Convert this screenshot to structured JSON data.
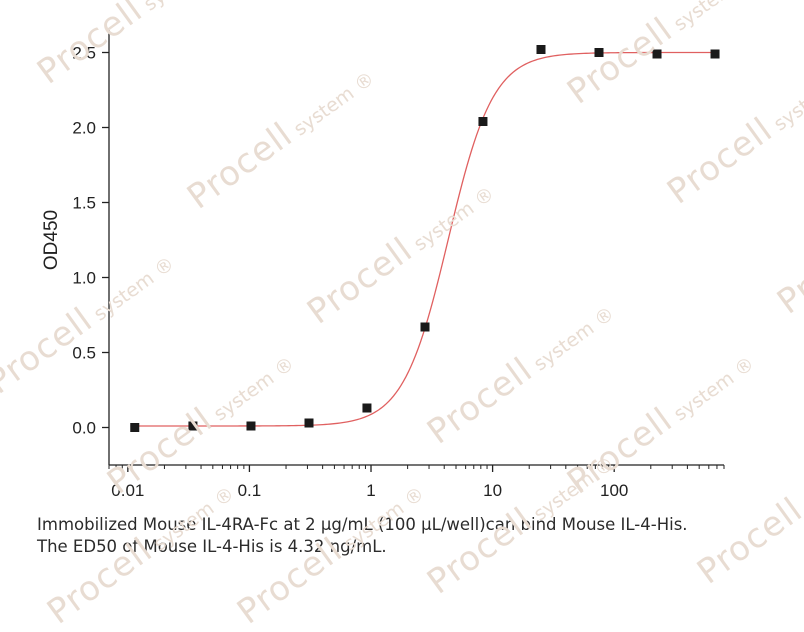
{
  "chart_data": {
    "type": "scatter",
    "title": "",
    "xlabel": "",
    "ylabel": "OD450",
    "x_scale": "log",
    "xlim": [
      0.007,
      800
    ],
    "ylim": [
      -0.25,
      2.65
    ],
    "x_ticks": [
      0.01,
      0.1,
      1,
      10,
      100
    ],
    "x_tick_labels": [
      "0.01",
      "0.1",
      "1",
      "10",
      "100"
    ],
    "y_ticks": [
      0,
      0.5,
      1,
      1.5,
      2,
      2.5
    ],
    "y_tick_labels": [
      "0.0",
      "0.5",
      "1.0",
      "1.5",
      "2.0",
      "2.5"
    ],
    "grid": false,
    "legend": "none",
    "series": [
      {
        "x": [
          0.0114,
          0.0343,
          0.103,
          0.309,
          0.926,
          2.78,
          8.33,
          25.0,
          75.0,
          225,
          675
        ],
        "y": [
          0.0,
          0.01,
          0.01,
          0.03,
          0.13,
          0.67,
          2.04,
          2.52,
          2.5,
          2.49,
          2.49
        ]
      }
    ],
    "fit_curve": {
      "type": "4PL",
      "bottom": 0.01,
      "top": 2.5,
      "ec50": 4.32,
      "hill": 2.35,
      "color": "#e06060"
    },
    "marker_color": "#1a1a1a"
  },
  "caption": {
    "line1": "Immobilized Mouse IL-4RA-Fc at 2 μg/mL (100 μL/well)can bind Mouse IL-4-His.",
    "line2": "The ED50 of Mouse IL-4-His is 4.32 ng/mL."
  },
  "watermark": {
    "brand": "Procell",
    "suffix": "system",
    "mark": "®"
  }
}
